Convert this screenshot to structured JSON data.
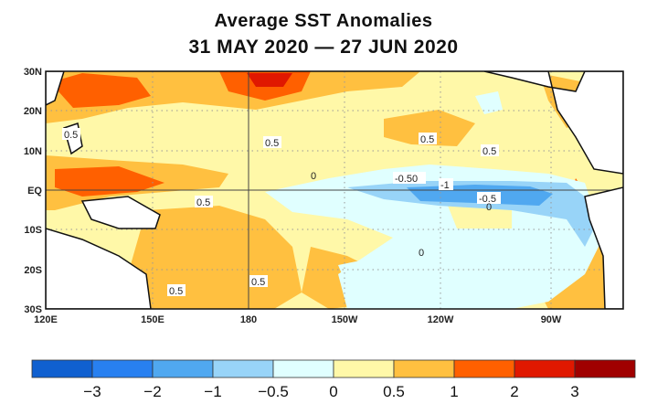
{
  "title": "Average SST Anomalies",
  "subtitle": "31 MAY 2020 — 27 JUN 2020",
  "axes": {
    "lat_labels": [
      "30N",
      "20N",
      "10N",
      "EQ",
      "10S",
      "20S",
      "30S"
    ],
    "lon_labels": [
      "120E",
      "150E",
      "180",
      "150W",
      "120W",
      "90W"
    ]
  },
  "contour_labels": [
    "0.5",
    "0.5",
    "0.5",
    "0.5",
    "0.5",
    "0.5",
    "0.5",
    "0",
    "-0.50",
    "-1",
    "-0.5",
    "0",
    "0"
  ],
  "colorbar": {
    "ticks": [
      "−3",
      "−2",
      "−1",
      "−0.5",
      "0",
      "0.5",
      "1",
      "2",
      "3"
    ],
    "colors": [
      "#1060d0",
      "#2880f0",
      "#50a8f0",
      "#98d4f8",
      "#e0ffff",
      "#fff8a8",
      "#ffc040",
      "#ff6000",
      "#e01800",
      "#a00000"
    ]
  }
}
